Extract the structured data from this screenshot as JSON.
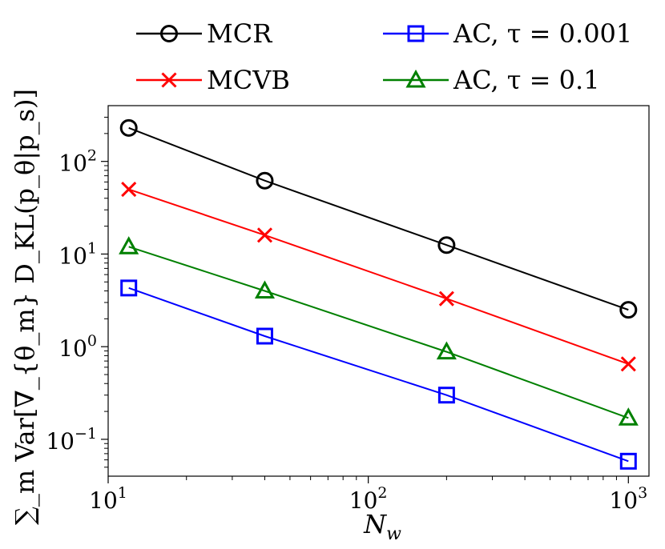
{
  "chart_data": {
    "type": "line",
    "xscale": "log",
    "yscale": "log",
    "xlim": [
      10,
      1200
    ],
    "ylim": [
      0.04,
      400
    ],
    "xlabel": "N_w",
    "xlabel_main": "N",
    "xlabel_sub": "w",
    "ylabel": "∑_m Var[∇_{θ_m} D_KL(p_θ|p_s)]",
    "xticks": [
      {
        "value": 10,
        "base": "10",
        "exp": "1"
      },
      {
        "value": 100,
        "base": "10",
        "exp": "2"
      },
      {
        "value": 1000,
        "base": "10",
        "exp": "3"
      }
    ],
    "yticks": [
      {
        "value": 0.1,
        "base": "10",
        "exp": "−1"
      },
      {
        "value": 1,
        "base": "10",
        "exp": "0"
      },
      {
        "value": 10,
        "base": "10",
        "exp": "1"
      },
      {
        "value": 100,
        "base": "10",
        "exp": "2"
      }
    ],
    "x": [
      12,
      40,
      200,
      1000
    ],
    "legend_position": "top",
    "series": [
      {
        "name": "MCR",
        "label": "MCR",
        "color": "#000000",
        "marker": "circle",
        "values": [
          230,
          62,
          12.5,
          2.5
        ]
      },
      {
        "name": "MCVB",
        "label": "MCVB",
        "color": "#ff0000",
        "marker": "x",
        "values": [
          50,
          16,
          3.3,
          0.65
        ]
      },
      {
        "name": "AC, τ = 0.001",
        "label": "AC, τ = 0.001",
        "color": "#0000ff",
        "marker": "square",
        "values": [
          4.3,
          1.3,
          0.3,
          0.058
        ]
      },
      {
        "name": "AC, τ = 0.1",
        "label": "AC, τ = 0.1",
        "color": "#008000",
        "marker": "triangle",
        "values": [
          12,
          4,
          0.88,
          0.17
        ]
      }
    ]
  }
}
